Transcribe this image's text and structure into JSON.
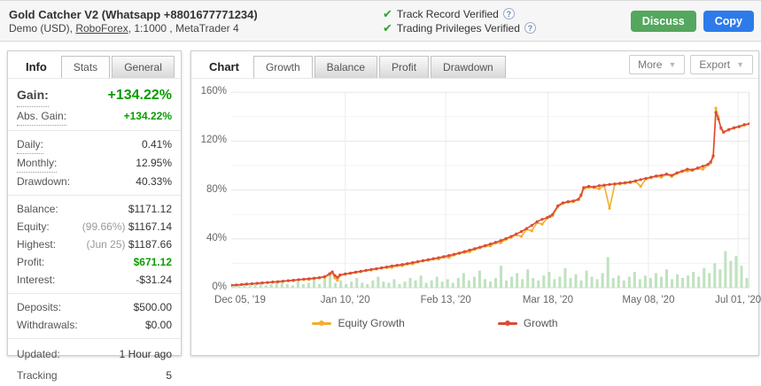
{
  "header": {
    "title": "Gold Catcher V2 (Whatsapp +8801677771234)",
    "subtitle_prefix": "Demo (USD), ",
    "subtitle_link": "RoboForex",
    "subtitle_suffix": ", 1:1000 , MetaTrader 4",
    "verified_1": "Track Record Verified",
    "verified_2": "Trading Privileges Verified",
    "check_icon": "✔",
    "help_icon": "?",
    "discuss_label": "Discuss",
    "copy_label": "Copy",
    "discuss_color": "#54a75e",
    "copy_color": "#2d7bea"
  },
  "info_panel": {
    "tabs": [
      {
        "label": "Info",
        "style": "title"
      },
      {
        "label": "Stats",
        "style": "lite"
      },
      {
        "label": "General",
        "style": "normal"
      }
    ],
    "rows": [
      {
        "label": "Gain:",
        "value": "+134.22%",
        "cls": "green",
        "size": "lg",
        "dotted": true
      },
      {
        "label": "Abs. Gain:",
        "value": "+134.22%",
        "cls": "green",
        "dotted": true,
        "divider": true
      },
      {
        "label": "Daily:",
        "value": "0.41%",
        "dotted": true
      },
      {
        "label": "Monthly:",
        "value": "12.95%",
        "dotted": true
      },
      {
        "label": "Drawdown:",
        "value": "40.33%",
        "divider": true
      },
      {
        "label": "Balance:",
        "value": "$1171.12"
      },
      {
        "label": "Equity:",
        "prefix": "(99.66%) ",
        "value": "$1167.14"
      },
      {
        "label": "Highest:",
        "prefix": "(Jun 25) ",
        "value": "$1187.66"
      },
      {
        "label": "Profit:",
        "value": "$671.12",
        "cls": "green"
      },
      {
        "label": "Interest:",
        "value": "-$31.24",
        "divider": true
      },
      {
        "label": "Deposits:",
        "value": "$500.00"
      },
      {
        "label": "Withdrawals:",
        "value": "$0.00",
        "divider": true
      },
      {
        "label": "Updated:",
        "value": "1 Hour ago",
        "spaced": true
      },
      {
        "label": "Tracking",
        "value": "5",
        "spaced": true
      }
    ]
  },
  "chart_panel": {
    "tabs": [
      {
        "label": "Chart",
        "style": "title"
      },
      {
        "label": "Growth",
        "style": "lite"
      },
      {
        "label": "Balance",
        "style": "normal"
      },
      {
        "label": "Profit",
        "style": "normal"
      },
      {
        "label": "Drawdown",
        "style": "normal"
      }
    ],
    "more_label": "More",
    "export_label": "Export",
    "dropdown_icon": "▼"
  },
  "chart_data": {
    "type": "line",
    "title": "Growth",
    "ylim": [
      0,
      160
    ],
    "y_ticks": [
      0,
      40,
      80,
      120,
      160
    ],
    "y_tick_suffix": "%",
    "grid": true,
    "legend_position": "bottom",
    "x_ticks": [
      {
        "label": "Dec 05, '19",
        "pos": 0.017
      },
      {
        "label": "Jan 10, '20",
        "pos": 0.22
      },
      {
        "label": "Feb 13, '20",
        "pos": 0.414
      },
      {
        "label": "Mar 18, '20",
        "pos": 0.611
      },
      {
        "label": "May 08, '20",
        "pos": 0.805
      },
      {
        "label": "Jul 01, '20",
        "pos": 0.978
      }
    ],
    "x": [
      0,
      0.01,
      0.02,
      0.03,
      0.04,
      0.05,
      0.06,
      0.07,
      0.08,
      0.09,
      0.1,
      0.11,
      0.12,
      0.13,
      0.14,
      0.15,
      0.16,
      0.17,
      0.18,
      0.19,
      0.195,
      0.2,
      0.205,
      0.21,
      0.22,
      0.23,
      0.24,
      0.25,
      0.26,
      0.27,
      0.28,
      0.29,
      0.3,
      0.31,
      0.32,
      0.33,
      0.34,
      0.35,
      0.36,
      0.37,
      0.38,
      0.39,
      0.4,
      0.41,
      0.42,
      0.43,
      0.44,
      0.45,
      0.46,
      0.47,
      0.48,
      0.49,
      0.5,
      0.51,
      0.52,
      0.53,
      0.54,
      0.55,
      0.56,
      0.57,
      0.58,
      0.59,
      0.6,
      0.61,
      0.615,
      0.62,
      0.63,
      0.64,
      0.65,
      0.66,
      0.67,
      0.675,
      0.68,
      0.69,
      0.7,
      0.71,
      0.72,
      0.73,
      0.74,
      0.75,
      0.76,
      0.77,
      0.78,
      0.79,
      0.8,
      0.81,
      0.82,
      0.83,
      0.84,
      0.85,
      0.86,
      0.87,
      0.88,
      0.89,
      0.9,
      0.91,
      0.92,
      0.925,
      0.93,
      0.935,
      0.94,
      0.945,
      0.95,
      0.96,
      0.97,
      0.98,
      0.99,
      1
    ],
    "series": [
      {
        "name": "Equity Growth",
        "color": "#f2ae2e",
        "values": [
          2,
          2.2,
          2.5,
          2.9,
          3.2,
          3.5,
          3.8,
          4.2,
          4.5,
          4.6,
          5.2,
          5.6,
          5.7,
          6.4,
          6.8,
          6.7,
          7.5,
          8,
          8.6,
          10.5,
          12.2,
          8,
          6,
          10,
          11,
          11.7,
          12.4,
          13,
          14,
          14.4,
          15.3,
          16,
          16.4,
          16.6,
          18,
          18,
          19.4,
          19.5,
          21,
          21.8,
          22.4,
          23.4,
          23.5,
          25,
          24.8,
          26.8,
          28,
          28.8,
          29.4,
          31.4,
          32.6,
          34,
          34.2,
          36.6,
          36.8,
          39.6,
          41.2,
          43.2,
          42,
          47.8,
          46.5,
          53.2,
          52,
          57,
          58,
          59,
          66,
          69,
          70,
          70.4,
          72,
          75,
          81,
          82,
          82,
          81,
          83.5,
          65,
          84.6,
          85,
          85.5,
          86,
          87,
          83,
          89,
          90,
          91,
          90.5,
          92.6,
          91,
          93.5,
          95,
          95.5,
          96,
          97.5,
          97,
          100.5,
          102,
          107,
          147,
          140,
          130,
          127,
          129,
          130.5,
          131.5,
          133,
          134
        ]
      },
      {
        "name": "Growth",
        "color": "#dc4a38",
        "values": [
          2,
          2.3,
          2.6,
          3,
          3.3,
          3.6,
          4,
          4.3,
          4.7,
          5,
          5.4,
          5.8,
          6.2,
          6.6,
          7,
          7.4,
          7.8,
          8.3,
          9,
          11.5,
          13,
          10,
          8.5,
          10.5,
          11.3,
          12,
          12.8,
          13.5,
          14.2,
          15,
          15.6,
          16.3,
          17,
          17.8,
          18.4,
          19,
          19.8,
          20.6,
          21.4,
          22.2,
          23,
          23.8,
          24.6,
          25.5,
          26.4,
          27.4,
          28.4,
          29.6,
          30.8,
          32,
          33.2,
          34.5,
          35.8,
          37.2,
          38.6,
          40.2,
          42,
          44,
          46,
          48.5,
          51,
          54,
          56,
          57.5,
          58.5,
          60,
          67,
          69.5,
          70.5,
          71,
          72.5,
          76,
          82,
          83,
          82.5,
          83.5,
          84,
          84.5,
          85,
          85.5,
          86,
          86.5,
          87.5,
          88.5,
          89.5,
          90.5,
          91.5,
          92,
          93,
          92,
          94,
          95.5,
          97,
          96.5,
          98,
          99.5,
          101,
          103,
          108,
          143.5,
          138,
          131,
          127.5,
          129.5,
          131,
          132,
          133.5,
          134.22
        ]
      }
    ],
    "volume_bars": {
      "name": "trade-volume-bars",
      "color": "#bfe2bf",
      "values": [
        3,
        2,
        4,
        2,
        3,
        5,
        2,
        3,
        4,
        6,
        3,
        2,
        5,
        3,
        4,
        7,
        3,
        8,
        10,
        4,
        6,
        3,
        5,
        8,
        4,
        3,
        6,
        9,
        5,
        4,
        7,
        3,
        5,
        8,
        6,
        10,
        4,
        6,
        9,
        5,
        7,
        4,
        8,
        12,
        6,
        9,
        14,
        7,
        5,
        8,
        18,
        6,
        9,
        12,
        7,
        15,
        8,
        6,
        10,
        13,
        7,
        9,
        16,
        8,
        11,
        6,
        14,
        9,
        7,
        12,
        25,
        8,
        10,
        6,
        9,
        13,
        7,
        10,
        8,
        12,
        9,
        15,
        7,
        11,
        8,
        10,
        13,
        9,
        16,
        12,
        20,
        15,
        30,
        22,
        26,
        18,
        8
      ]
    },
    "colors": {
      "grid_major": "#e7e7e7",
      "grid_minor": "#f3f3f3",
      "axis_text": "#666"
    }
  }
}
